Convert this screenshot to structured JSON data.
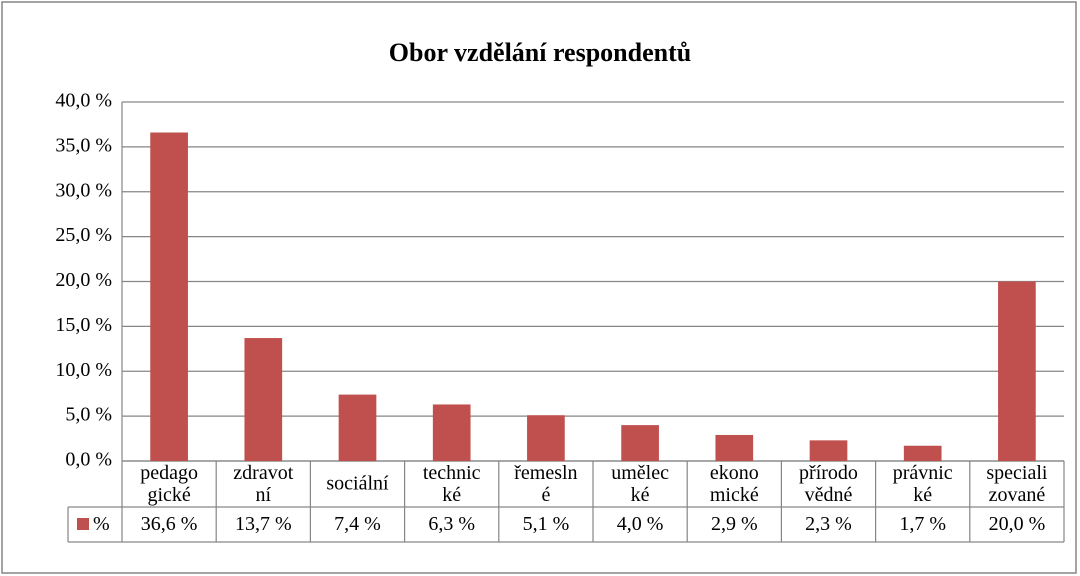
{
  "chart_data": {
    "type": "bar",
    "title": "Obor vzdělání respondentů",
    "categories": [
      "pedago\ngické",
      "zdravot\nní",
      "sociální",
      "technic\nké",
      "řemesln\né",
      "umělec\nké",
      "ekono\nmické",
      "přírodo\nvědné",
      "právnic\nké",
      "speciali\nzované"
    ],
    "series": [
      {
        "name": "%",
        "color": "#c0504d",
        "values": [
          36.6,
          13.7,
          7.4,
          6.3,
          5.1,
          4.0,
          2.9,
          2.3,
          1.7,
          20.0
        ],
        "value_labels": [
          "36,6 %",
          "13,7 %",
          "7,4 %",
          "6,3 %",
          "5,1 %",
          "4,0 %",
          "2,9 %",
          "2,3 %",
          "1,7 %",
          "20,0 %"
        ]
      }
    ],
    "ylim": [
      0,
      40
    ],
    "yticks": [
      {
        "value": 0,
        "label": "0,0 %"
      },
      {
        "value": 5,
        "label": "5,0 %"
      },
      {
        "value": 10,
        "label": "10,0 %"
      },
      {
        "value": 15,
        "label": "15,0 %"
      },
      {
        "value": 20,
        "label": "20,0 %"
      },
      {
        "value": 25,
        "label": "25,0 %"
      },
      {
        "value": 30,
        "label": "30,0 %"
      },
      {
        "value": 35,
        "label": "35,0 %"
      },
      {
        "value": 40,
        "label": "40,0 %"
      }
    ],
    "grid": true
  }
}
